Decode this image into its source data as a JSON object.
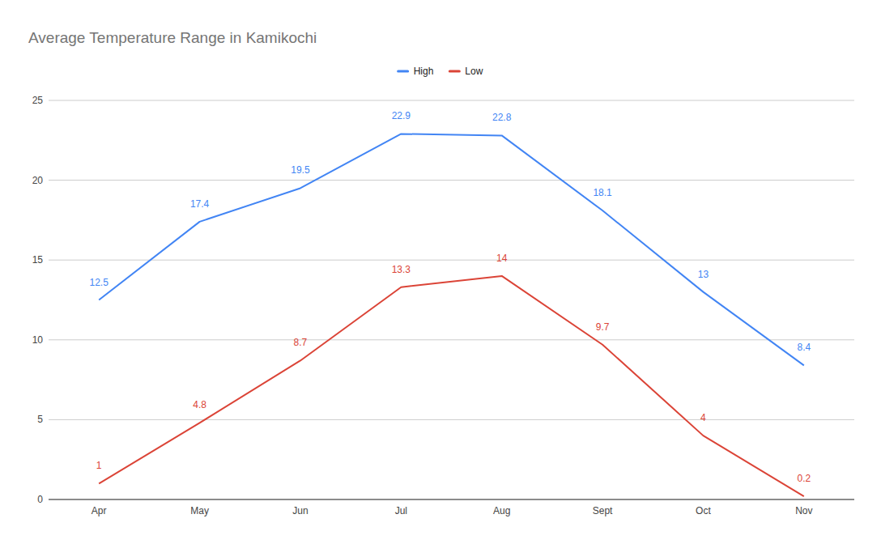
{
  "chart_data": {
    "type": "line",
    "title": "Average Temperature Range in Kamikochi",
    "categories": [
      "Apr",
      "May",
      "Jun",
      "Jul",
      "Aug",
      "Sept",
      "Oct",
      "Nov"
    ],
    "series": [
      {
        "name": "High",
        "color": "#4285f4",
        "values": [
          12.5,
          17.4,
          19.5,
          22.9,
          22.8,
          18.1,
          13,
          8.4
        ]
      },
      {
        "name": "Low",
        "color": "#db4437",
        "values": [
          1,
          4.8,
          8.7,
          13.3,
          14,
          9.7,
          4,
          0.2
        ]
      }
    ],
    "ylim": [
      0,
      25
    ],
    "yticks": [
      0,
      5,
      10,
      15,
      20,
      25
    ],
    "grid": true,
    "legend": "top",
    "data_labels": true
  }
}
